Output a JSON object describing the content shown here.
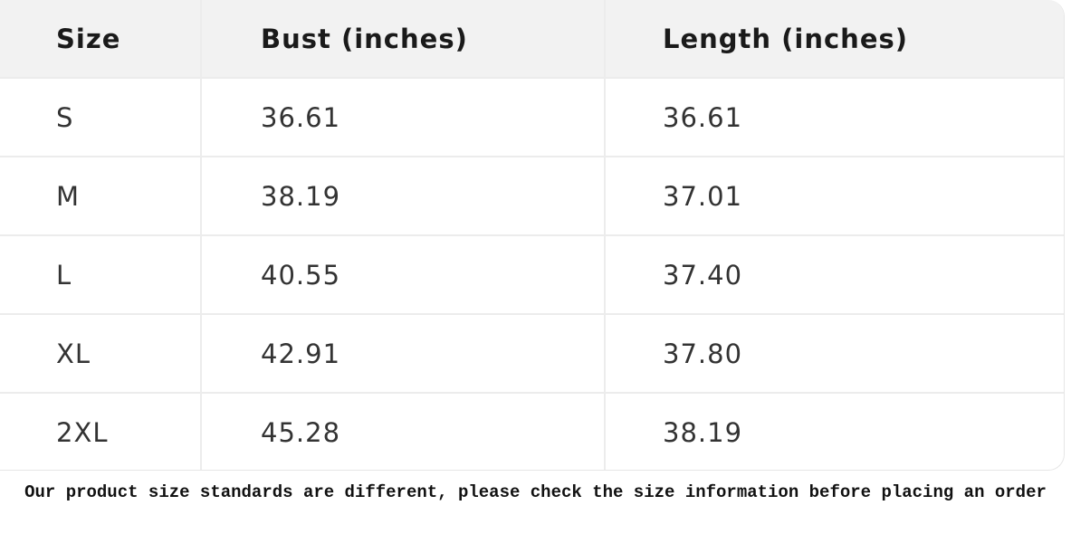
{
  "table": {
    "headers": [
      "Size",
      "Bust (inches)",
      "Length (inches)"
    ],
    "rows": [
      [
        "S",
        "36.61",
        "36.61"
      ],
      [
        "M",
        "38.19",
        "37.01"
      ],
      [
        "L",
        "40.55",
        "37.40"
      ],
      [
        "XL",
        "42.91",
        "37.80"
      ],
      [
        "2XL",
        "45.28",
        "38.19"
      ]
    ]
  },
  "note": "Our product size standards are different, please check the size information before placing an order"
}
